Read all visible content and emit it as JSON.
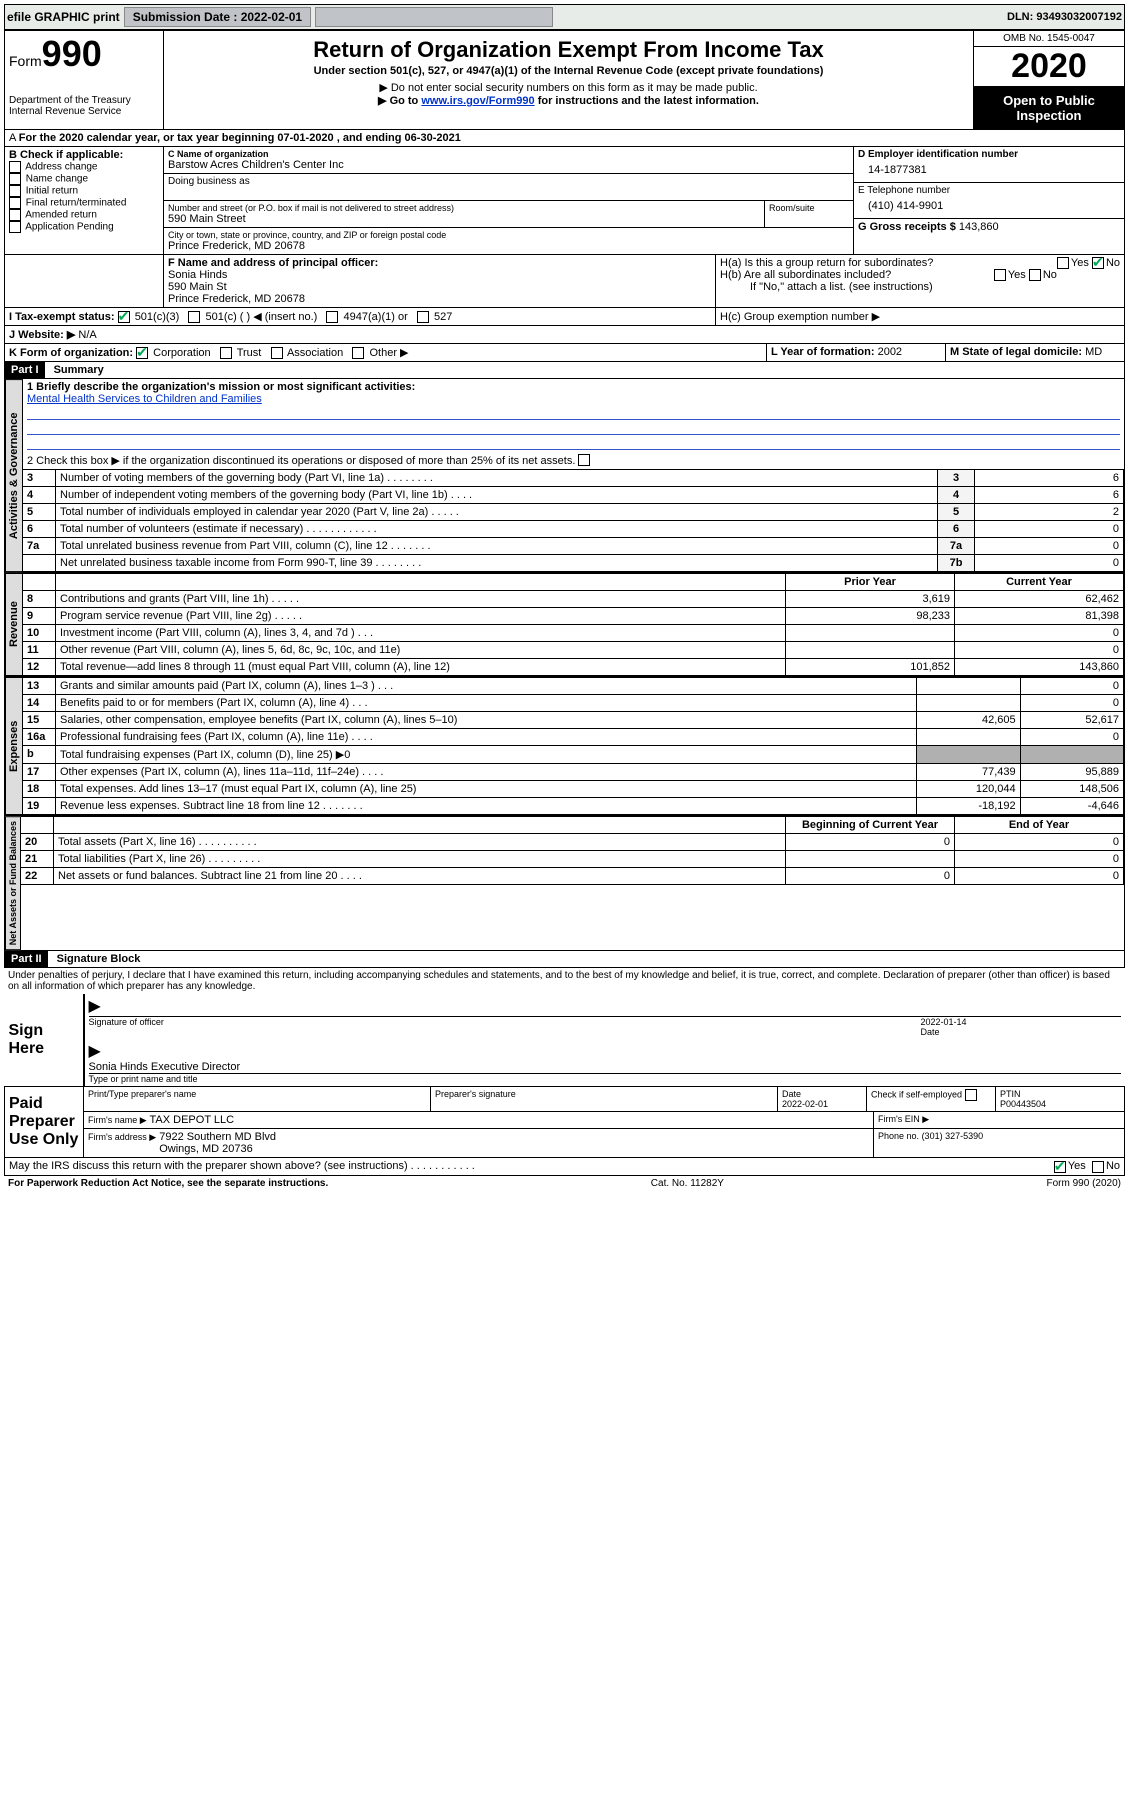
{
  "topbar": {
    "efile": "efile GRAPHIC print",
    "submission_label": "Submission Date : 2022-02-01",
    "dln": "DLN: 93493032007192"
  },
  "header": {
    "form_label": "Form",
    "form_number": "990",
    "dept": "Department of the Treasury\nInternal Revenue Service",
    "title": "Return of Organization Exempt From Income Tax",
    "subtitle": "Under section 501(c), 527, or 4947(a)(1) of the Internal Revenue Code (except private foundations)",
    "note1": "▶ Do not enter social security numbers on this form as it may be made public.",
    "note2_pre": "▶ Go to ",
    "note2_link": "www.irs.gov/Form990",
    "note2_post": " for instructions and the latest information.",
    "omb": "OMB No. 1545-0047",
    "year": "2020",
    "inspect": "Open to Public Inspection"
  },
  "periodA": "For the 2020 calendar year, or tax year beginning 07-01-2020    , and ending 06-30-2021",
  "boxB": {
    "label": "B Check if applicable:",
    "items": [
      "Address change",
      "Name change",
      "Initial return",
      "Final return/terminated",
      "Amended return",
      "Application Pending"
    ]
  },
  "boxC": {
    "name_label": "C Name of organization",
    "name": "Barstow Acres Children's Center Inc",
    "dba_label": "Doing business as",
    "street_label": "Number and street (or P.O. box if mail is not delivered to street address)",
    "room_label": "Room/suite",
    "street": "590 Main Street",
    "city_label": "City or town, state or province, country, and ZIP or foreign postal code",
    "city": "Prince Frederick, MD  20678"
  },
  "boxD": {
    "label": "D Employer identification number",
    "value": "14-1877381"
  },
  "boxE": {
    "label": "E Telephone number",
    "value": "(410) 414-9901"
  },
  "boxG": {
    "label": "G Gross receipts $",
    "value": "143,860"
  },
  "boxF": {
    "label": "F Name and address of principal officer:",
    "name": "Sonia Hinds",
    "addr1": "590 Main St",
    "addr2": "Prince Frederick, MD  20678"
  },
  "boxH": {
    "a": "H(a)  Is this a group return for subordinates?",
    "a_yes": "Yes",
    "a_no": "No",
    "b": "H(b)  Are all subordinates included?",
    "b_note": "If \"No,\" attach a list. (see instructions)",
    "c": "H(c)  Group exemption number ▶"
  },
  "boxI": {
    "label": "I   Tax-exempt status:",
    "items": [
      "501(c)(3)",
      "501(c) (  ) ◀ (insert no.)",
      "4947(a)(1) or",
      "527"
    ]
  },
  "boxJ": {
    "label": "J   Website: ▶",
    "value": "N/A"
  },
  "boxK": {
    "label": "K Form of organization:",
    "items": [
      "Corporation",
      "Trust",
      "Association",
      "Other ▶"
    ]
  },
  "boxL": {
    "label": "L Year of formation:",
    "value": "2002"
  },
  "boxM": {
    "label": "M State of legal domicile:",
    "value": "MD"
  },
  "part1": {
    "part": "Part I",
    "title": "Summary",
    "q1": "1   Briefly describe the organization's mission or most significant activities:",
    "mission": "Mental Health Services to Children and Families",
    "q2": "2   Check this box ▶       if the organization discontinued its operations or disposed of more than 25% of its net assets.",
    "tab_gov": "Activities & Governance",
    "tab_rev": "Revenue",
    "tab_exp": "Expenses",
    "tab_net": "Net Assets or Fund Balances",
    "prior": "Prior Year",
    "current": "Current Year",
    "beg": "Beginning of Current Year",
    "end": "End of Year",
    "rows_gov": [
      {
        "n": "3",
        "t": "Number of voting members of the governing body (Part VI, line 1a)  .    .    .    .    .    .    .    .",
        "cn": "3",
        "v": "6"
      },
      {
        "n": "4",
        "t": "Number of independent voting members of the governing body (Part VI, line 1b)   .    .    .    .",
        "cn": "4",
        "v": "6"
      },
      {
        "n": "5",
        "t": "Total number of individuals employed in calendar year 2020 (Part V, line 2a)   .    .    .    .    .",
        "cn": "5",
        "v": "2"
      },
      {
        "n": "6",
        "t": "Total number of volunteers (estimate if necessary)   .    .    .    .    .    .    .    .    .    .    .    .",
        "cn": "6",
        "v": "0"
      },
      {
        "n": "7a",
        "t": "Total unrelated business revenue from Part VIII, column (C), line 12   .    .    .    .    .    .    .",
        "cn": "7a",
        "v": "0"
      },
      {
        "n": "",
        "t": "Net unrelated business taxable income from Form 990-T, line 39    .    .    .    .    .    .    .    .",
        "cn": "7b",
        "v": "0"
      }
    ],
    "rows_rev": [
      {
        "n": "8",
        "t": "Contributions and grants (Part VIII, line 1h)    .    .    .    .    .",
        "p": "3,619",
        "c": "62,462"
      },
      {
        "n": "9",
        "t": "Program service revenue (Part VIII, line 2g)    .    .    .    .    .",
        "p": "98,233",
        "c": "81,398"
      },
      {
        "n": "10",
        "t": "Investment income (Part VIII, column (A), lines 3, 4, and 7d )   .    .    .",
        "p": "",
        "c": "0"
      },
      {
        "n": "11",
        "t": "Other revenue (Part VIII, column (A), lines 5, 6d, 8c, 9c, 10c, and 11e)",
        "p": "",
        "c": "0"
      },
      {
        "n": "12",
        "t": "Total revenue—add lines 8 through 11 (must equal Part VIII, column (A), line 12)",
        "p": "101,852",
        "c": "143,860"
      }
    ],
    "rows_exp": [
      {
        "n": "13",
        "t": "Grants and similar amounts paid (Part IX, column (A), lines 1–3 )   .    .    .",
        "p": "",
        "c": "0"
      },
      {
        "n": "14",
        "t": "Benefits paid to or for members (Part IX, column (A), line 4)    .    .    .",
        "p": "",
        "c": "0"
      },
      {
        "n": "15",
        "t": "Salaries, other compensation, employee benefits (Part IX, column (A), lines 5–10)",
        "p": "42,605",
        "c": "52,617"
      },
      {
        "n": "16a",
        "t": "Professional fundraising fees (Part IX, column (A), line 11e)   .    .    .    .",
        "p": "",
        "c": "0"
      },
      {
        "n": "b",
        "t": "Total fundraising expenses (Part IX, column (D), line 25) ▶0",
        "p": "__shade__",
        "c": "__shade__"
      },
      {
        "n": "17",
        "t": "Other expenses (Part IX, column (A), lines 11a–11d, 11f–24e) .    .    .    .",
        "p": "77,439",
        "c": "95,889"
      },
      {
        "n": "18",
        "t": "Total expenses. Add lines 13–17 (must equal Part IX, column (A), line 25)",
        "p": "120,044",
        "c": "148,506"
      },
      {
        "n": "19",
        "t": "Revenue less expenses. Subtract line 18 from line 12 .    .    .    .    .    .    .",
        "p": "-18,192",
        "c": "-4,646"
      }
    ],
    "rows_net": [
      {
        "n": "20",
        "t": "Total assets (Part X, line 16)   .    .    .    .    .    .    .    .    .    .",
        "p": "0",
        "c": "0"
      },
      {
        "n": "21",
        "t": "Total liabilities (Part X, line 26)    .    .    .    .    .    .    .    .    .",
        "p": "",
        "c": "0"
      },
      {
        "n": "22",
        "t": "Net assets or fund balances. Subtract line 21 from line 20   .    .    .    .",
        "p": "0",
        "c": "0"
      }
    ]
  },
  "part2": {
    "part": "Part II",
    "title": "Signature Block",
    "perjury": "Under penalties of perjury, I declare that I have examined this return, including accompanying schedules and statements, and to the best of my knowledge and belief, it is true, correct, and complete. Declaration of preparer (other than officer) is based on all information of which preparer has any knowledge.",
    "sign_here": "Sign Here",
    "sig_officer": "Signature of officer",
    "sig_date": "2022-01-14",
    "date_label": "Date",
    "typed": "Sonia Hinds  Executive Director",
    "typed_label": "Type or print name and title",
    "paid": "Paid Preparer Use Only",
    "p_name_label": "Print/Type preparer's name",
    "p_sig_label": "Preparer's signature",
    "p_date_label": "Date",
    "p_date": "2022-02-01",
    "p_check": "Check        if self-employed",
    "ptin_label": "PTIN",
    "ptin": "P00443504",
    "firm_name_label": "Firm's name     ▶",
    "firm_name": "TAX DEPOT LLC",
    "firm_ein_label": "Firm's EIN ▶",
    "firm_addr_label": "Firm's address ▶",
    "firm_addr": "7922 Southern MD Blvd\nOwings, MD  20736",
    "firm_phone_label": "Phone no.",
    "firm_phone": "(301) 327-5390",
    "discuss": "May the IRS discuss this return with the preparer shown above? (see instructions)   .    .    .    .    .    .    .    .    .    .    .",
    "yes": "Yes",
    "no": "No"
  },
  "footer": {
    "left": "For Paperwork Reduction Act Notice, see the separate instructions.",
    "mid": "Cat. No. 11282Y",
    "right": "Form 990 (2020)"
  }
}
